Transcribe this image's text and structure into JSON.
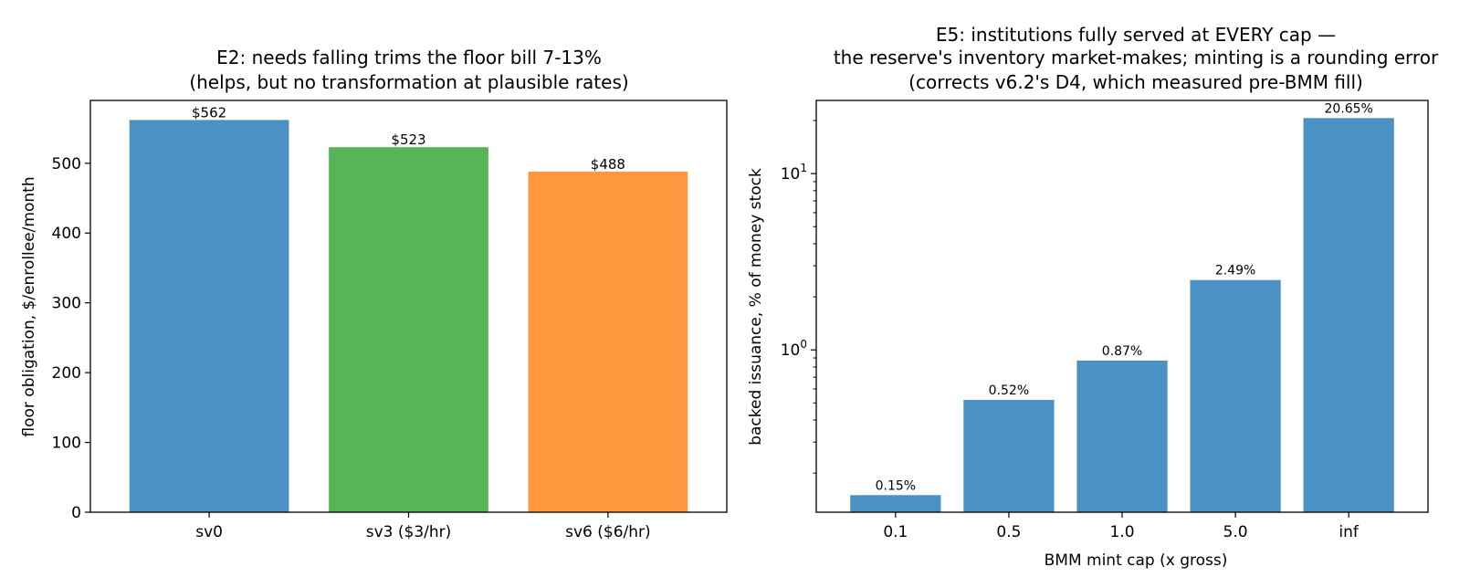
{
  "chart_data": [
    {
      "type": "bar",
      "title_lines": [
        "E2: needs falling trims the floor bill 7-13%",
        "(helps, but no transformation at plausible rates)"
      ],
      "xlabel": "",
      "ylabel": "floor obligation, $/enrollee/month",
      "categories": [
        "sv0",
        "sv3 ($3/hr)",
        "sv6 ($6/hr)"
      ],
      "values": [
        562,
        523,
        488
      ],
      "data_labels": [
        "$562",
        "$523",
        "$488"
      ],
      "colors": [
        "#4c91c3",
        "#57b457",
        "#ff983f"
      ],
      "ylim": [
        0,
        590
      ],
      "yticks": [
        0,
        100,
        200,
        300,
        400,
        500
      ],
      "grid": false
    },
    {
      "type": "bar",
      "title_lines": [
        "E5: institutions fully served at EVERY cap —",
        "the reserve's inventory market-makes; minting is a rounding error",
        "(corrects v6.2's D4, which measured pre-BMM fill)"
      ],
      "xlabel": "BMM mint cap (x gross)",
      "ylabel": "backed issuance, % of money stock",
      "categories": [
        "0.1",
        "0.5",
        "1.0",
        "5.0",
        "inf"
      ],
      "values": [
        0.15,
        0.52,
        0.87,
        2.49,
        20.65
      ],
      "data_labels": [
        "0.15%",
        "0.52%",
        "0.87%",
        "2.49%",
        "20.65%"
      ],
      "color": "#4c91c3",
      "yscale": "log",
      "ylim": [
        0.12,
        26
      ],
      "yticks_major": [
        {
          "value": 1,
          "base": "10",
          "exp": "0"
        },
        {
          "value": 10,
          "base": "10",
          "exp": "1"
        }
      ],
      "grid": false
    }
  ]
}
